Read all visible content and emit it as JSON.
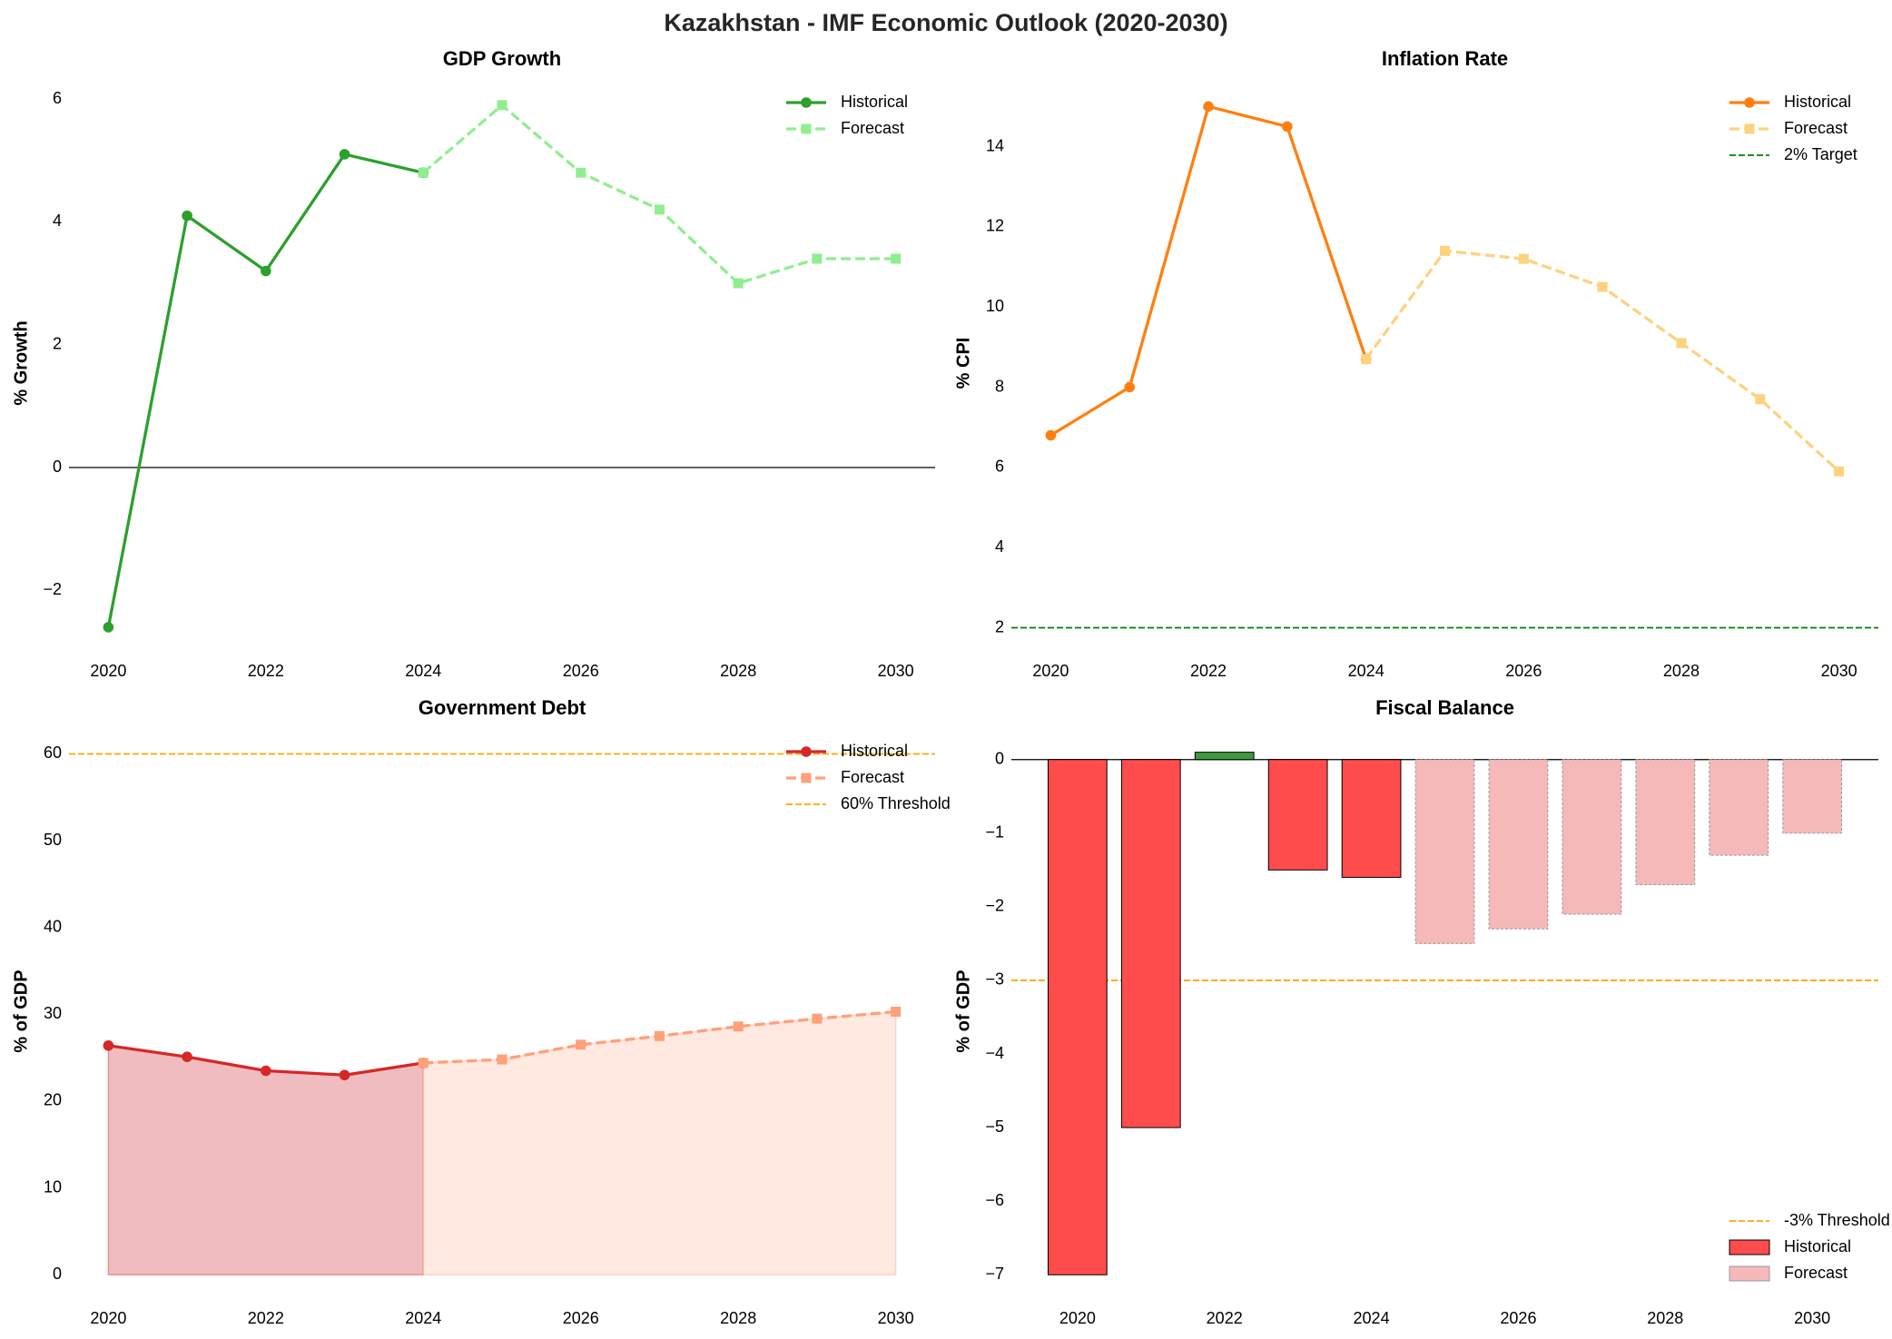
{
  "title": "Kazakhstan - IMF Economic Outlook (2020-2030)",
  "chart_data": [
    {
      "type": "line",
      "title": "GDP Growth",
      "ylabel": "% Growth",
      "xlim": [
        2019.5,
        2030.5
      ],
      "xticks": [
        2020,
        2022,
        2024,
        2026,
        2028,
        2030
      ],
      "ylim": [
        -3.0,
        6.4
      ],
      "yticks": [
        {
          "value": -2,
          "label": "−2"
        },
        0,
        2,
        4,
        6
      ],
      "zero_line": true,
      "legend": "upper right",
      "series": [
        {
          "name": "Historical",
          "color": "#2ca02c",
          "style": "solid",
          "marker": "circle",
          "x": [
            2020,
            2021,
            2022,
            2023,
            2024
          ],
          "values": [
            -2.6,
            4.1,
            3.2,
            5.1,
            4.8
          ]
        },
        {
          "name": "Forecast",
          "color": "#90ee90",
          "style": "dashed",
          "marker": "square",
          "x": [
            2024,
            2025,
            2026,
            2027,
            2028,
            2029,
            2030
          ],
          "values": [
            4.8,
            5.9,
            4.8,
            4.2,
            3.0,
            3.4,
            3.4
          ]
        }
      ],
      "hlines": []
    },
    {
      "type": "line",
      "title": "Inflation Rate",
      "ylabel": "% CPI",
      "xlim": [
        2019.5,
        2030.5
      ],
      "xticks": [
        2020,
        2022,
        2024,
        2026,
        2028,
        2030
      ],
      "ylim": [
        1.4,
        15.8
      ],
      "yticks": [
        2,
        4,
        6,
        8,
        10,
        12,
        14
      ],
      "zero_line": false,
      "legend": "upper right",
      "series": [
        {
          "name": "Historical",
          "color": "#ff7f0e",
          "style": "solid",
          "marker": "circle",
          "x": [
            2020,
            2021,
            2022,
            2023,
            2024
          ],
          "values": [
            6.8,
            8.0,
            15.0,
            14.5,
            8.7
          ]
        },
        {
          "name": "Forecast",
          "color": "#fdd27f",
          "style": "dashed",
          "marker": "square",
          "x": [
            2024,
            2025,
            2026,
            2027,
            2028,
            2029,
            2030
          ],
          "values": [
            8.7,
            11.4,
            11.2,
            10.5,
            9.1,
            7.7,
            5.9
          ]
        }
      ],
      "hlines": [
        {
          "name": "2% Target",
          "y": 2,
          "color": "#008000"
        }
      ]
    },
    {
      "type": "line",
      "title": "Government Debt",
      "ylabel": "% of GDP",
      "xlim": [
        2019.5,
        2030.5
      ],
      "xticks": [
        2020,
        2022,
        2024,
        2026,
        2028,
        2030
      ],
      "ylim": [
        -2.8,
        63.5
      ],
      "yticks": [
        0,
        10,
        20,
        30,
        40,
        50,
        60
      ],
      "zero_line": false,
      "legend": "upper right",
      "series": [
        {
          "name": "Historical",
          "color": "#d62728",
          "style": "solid",
          "marker": "circle",
          "fill_color": "#f0bcbf",
          "x": [
            2020,
            2021,
            2022,
            2023,
            2024
          ],
          "values": [
            26.4,
            25.1,
            23.5,
            23.0,
            24.4
          ]
        },
        {
          "name": "Forecast",
          "color": "#ffa07a",
          "style": "dashed",
          "marker": "square",
          "fill_color": "#ffe9e0",
          "x": [
            2024,
            2025,
            2026,
            2027,
            2028,
            2029,
            2030
          ],
          "values": [
            24.4,
            24.8,
            26.5,
            27.5,
            28.6,
            29.5,
            30.3
          ]
        }
      ],
      "hlines": [
        {
          "name": "60% Threshold",
          "y": 60,
          "color": "#ffa500"
        }
      ]
    },
    {
      "type": "bar",
      "title": "Fiscal Balance",
      "ylabel": "% of GDP",
      "xlim": [
        2019.1,
        2030.9
      ],
      "xticks": [
        2020,
        2022,
        2024,
        2026,
        2028,
        2030
      ],
      "ylim": [
        -7.33,
        0.49
      ],
      "yticks": [
        {
          "value": -7,
          "label": "−7"
        },
        {
          "value": -6,
          "label": "−6"
        },
        {
          "value": -5,
          "label": "−5"
        },
        {
          "value": -4,
          "label": "−4"
        },
        {
          "value": -3,
          "label": "−3"
        },
        {
          "value": -2,
          "label": "−2"
        },
        {
          "value": -1,
          "label": "−1"
        },
        0
      ],
      "zero_line": true,
      "legend": "lower right",
      "series": [
        {
          "name": "Historical",
          "color": "#ff4c4c",
          "positive_color": "#3d9a3d",
          "edgecolor": "#000000",
          "x": [
            2020,
            2021,
            2022,
            2023,
            2024
          ],
          "values": [
            -7.0,
            -5.0,
            0.1,
            -1.5,
            -1.6
          ]
        },
        {
          "name": "Forecast",
          "color": "#f5b9b9",
          "positive_color": "#f5b9b9",
          "edgecolor": "#999999",
          "x": [
            2025,
            2026,
            2027,
            2028,
            2029,
            2030
          ],
          "values": [
            -2.5,
            -2.3,
            -2.1,
            -1.7,
            -1.3,
            -1.0
          ]
        }
      ],
      "hlines": [
        {
          "name": "-3% Threshold",
          "y": -3,
          "color": "#ffa500"
        }
      ]
    }
  ]
}
